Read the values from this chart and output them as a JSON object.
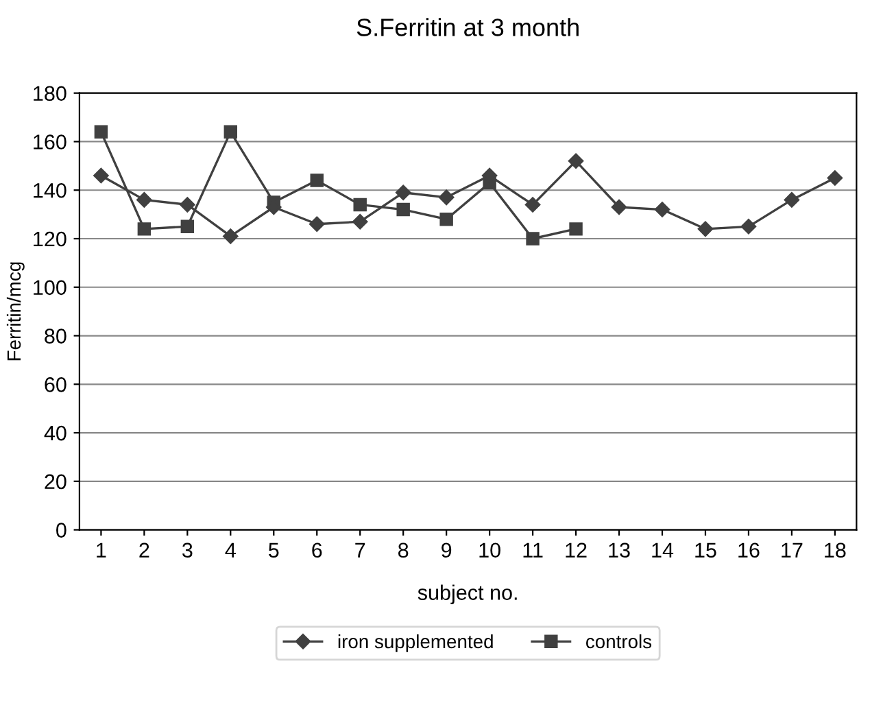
{
  "chart_data": {
    "type": "line",
    "title": "S.Ferritin at 3 month",
    "xlabel": "subject no.",
    "ylabel": "Ferritin/mcg",
    "categories": [
      "1",
      "2",
      "3",
      "4",
      "5",
      "6",
      "7",
      "8",
      "9",
      "10",
      "11",
      "12",
      "13",
      "14",
      "15",
      "16",
      "17",
      "18"
    ],
    "series": [
      {
        "name": "iron supplemented",
        "color": "#404040",
        "marker": "diamond",
        "values": [
          146,
          136,
          134,
          121,
          133,
          126,
          127,
          139,
          137,
          146,
          134,
          152,
          133,
          132,
          124,
          125,
          136,
          145
        ]
      },
      {
        "name": "controls",
        "color": "#404040",
        "marker": "square",
        "values": [
          164,
          124,
          125,
          164,
          135,
          144,
          134,
          132,
          128,
          143,
          120,
          124,
          null,
          null,
          null,
          null,
          null,
          null
        ]
      }
    ],
    "ylim": [
      0,
      180
    ],
    "yticks": [
      0,
      20,
      40,
      60,
      80,
      100,
      120,
      140,
      160,
      180
    ],
    "grid": "y",
    "legend": "bottom",
    "line_style": "solid"
  }
}
